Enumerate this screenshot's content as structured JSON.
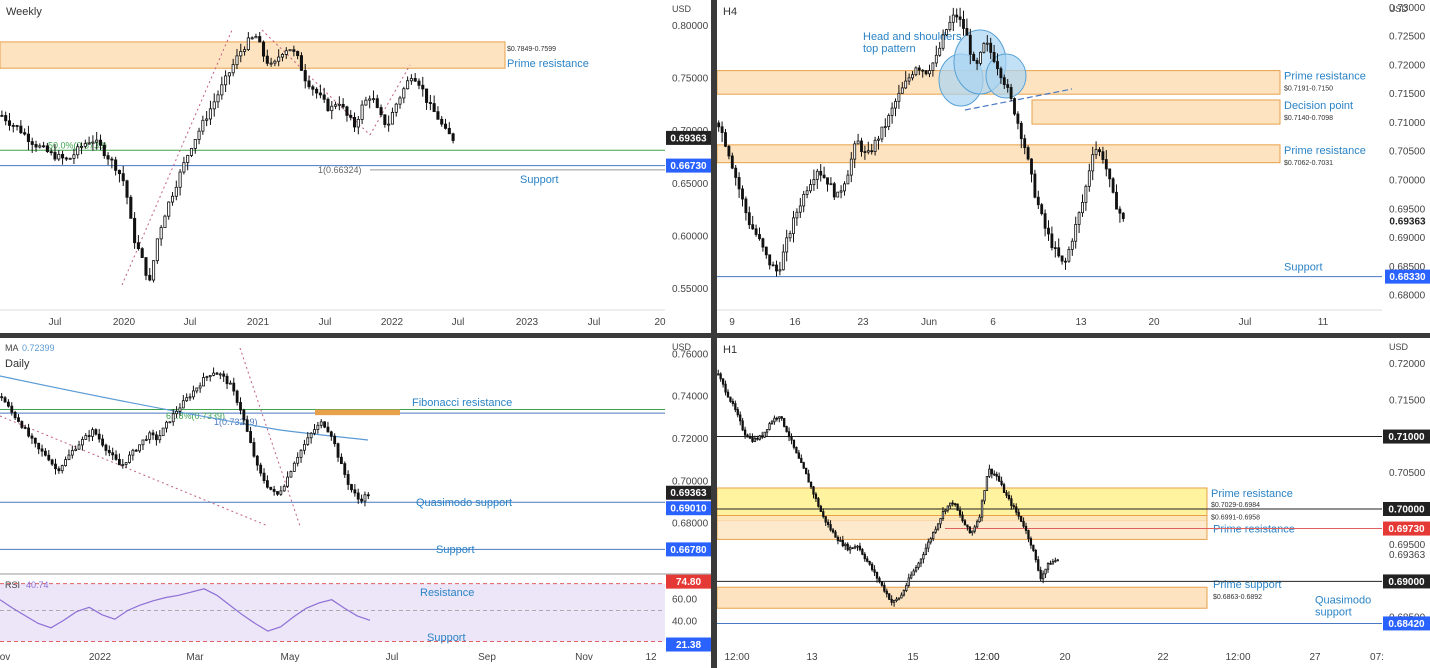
{
  "colors": {
    "bull": "#ffffff",
    "bear": "#111111",
    "zone_fill": "#fde3bf",
    "zone_stroke": "#e8a14a",
    "yellow_fill": "#fff3a0",
    "label_blue": "#2b83c6",
    "ma_line": "#5b9bd5",
    "fib_green": "#3fa34d",
    "rsi_fill": "#ece6f8",
    "rsi_line": "#8e6fd6",
    "tag_dark": "#222222",
    "tag_blue": "#2962ff",
    "tag_red": "#e53935"
  },
  "panels": {
    "weekly": {
      "timeframe": "Weekly",
      "currency": "USD",
      "y_ticks": [
        "0.80000",
        "0.75000",
        "0.70000",
        "0.65000",
        "0.60000",
        "0.55000"
      ],
      "x_ticks": [
        "Jul",
        "2020",
        "Jul",
        "2021",
        "Jul",
        "2022",
        "Jul",
        "2023",
        "Jul",
        "20"
      ],
      "zone_text": "$0.7849-0.7599",
      "zone_label": "Prime resistance",
      "fib_text": "50.0%(0.6733)",
      "ext_text": "1(0.66324)",
      "support_label": "Support",
      "price_tag": "0.69363",
      "support_tag": "0.66730"
    },
    "h4": {
      "timeframe": "H4",
      "currency": "USD",
      "y_ticks": [
        "0.73000",
        "0.72500",
        "0.72000",
        "0.71500",
        "0.71000",
        "0.70500",
        "0.70000",
        "0.69500",
        "0.69000",
        "0.68500",
        "0.68000"
      ],
      "x_ticks": [
        "9",
        "16",
        "23",
        "Jun",
        "6",
        "13",
        "20",
        "Jul",
        "11"
      ],
      "pattern_label": "Head and shoulders\ntop pattern",
      "zones": [
        {
          "label": "Prime resistance",
          "range": "$0.7191-0.7150"
        },
        {
          "label": "Decision point",
          "range": "$0.7140-0.7098"
        },
        {
          "label": "Prime resistance",
          "range": "$0.7062-0.7031"
        }
      ],
      "support_label": "Support",
      "price_tag": "0.69363",
      "support_tag": "0.68330"
    },
    "daily": {
      "ma_label": "MA",
      "ma_value": "0.72399",
      "timeframe": "Daily",
      "currency": "USD",
      "y_ticks": [
        "0.76000",
        "0.74000",
        "0.72000",
        "0.70000",
        "0.68000"
      ],
      "x_ticks": [
        "ov",
        "2022",
        "Mar",
        "May",
        "Jul",
        "Sep",
        "Nov",
        "12"
      ],
      "fib_label": "Fibonacci resistance",
      "fib_text": "61.8%(0.7339)",
      "ext_text": "1(0.73219)",
      "qm_label": "Quasimodo support",
      "support_label": "Support",
      "rsi_label": "RSI",
      "rsi_value": "40.74",
      "rsi_resistance": "Resistance",
      "rsi_support": "Support",
      "rsi_ticks": [
        "60.00",
        "40.00"
      ],
      "price_tag": "0.69363",
      "qm_tag": "0.69010",
      "support_tag": "0.66780",
      "rsi_top_tag": "74.80",
      "rsi_bot_tag": "21.38"
    },
    "h1": {
      "timeframe": "H1",
      "currency": "USD",
      "y_ticks": [
        "0.72000",
        "0.71500",
        "0.70500",
        "0.69500",
        "0.68500"
      ],
      "x_ticks": [
        "12:00",
        "13",
        "12:00",
        "15",
        "12:00",
        "20",
        "22",
        "12:00",
        "27",
        "07:"
      ],
      "zones": [
        {
          "label": "Prime resistance",
          "range": "$0.7029-0.6984"
        },
        {
          "label": "Prime resistance",
          "range": "$0.6991-0.6958"
        },
        {
          "label": "Prime support",
          "range": "$0.6863-0.6892"
        }
      ],
      "qm_label": "Quasimodo\nsupport",
      "tags": {
        "level_710": "0.71000",
        "level_700": "0.70000",
        "red": "0.69730",
        "price": "0.69363",
        "level_690": "0.69000",
        "qm": "0.68420"
      }
    }
  },
  "chart_data": [
    {
      "type": "candlestick",
      "title": "Weekly",
      "ylim": [
        0.53,
        0.82
      ],
      "levels": [
        {
          "name": "Prime resistance",
          "range": [
            0.7599,
            0.7849
          ]
        },
        {
          "name": "Support",
          "value": 0.6673
        }
      ],
      "close_path": [
        0.715,
        0.708,
        0.703,
        0.695,
        0.688,
        0.683,
        0.678,
        0.675,
        0.672,
        0.68,
        0.688,
        0.692,
        0.685,
        0.675,
        0.665,
        0.65,
        0.6,
        0.58,
        0.555,
        0.6,
        0.625,
        0.645,
        0.665,
        0.685,
        0.7,
        0.715,
        0.73,
        0.745,
        0.76,
        0.775,
        0.785,
        0.79,
        0.77,
        0.76,
        0.775,
        0.78,
        0.77,
        0.75,
        0.74,
        0.73,
        0.72,
        0.73,
        0.715,
        0.705,
        0.725,
        0.735,
        0.715,
        0.705,
        0.725,
        0.74,
        0.755,
        0.745,
        0.725,
        0.715,
        0.7,
        0.693
      ]
    },
    {
      "type": "candlestick",
      "title": "H4",
      "ylim": [
        0.6775,
        0.7305
      ],
      "levels": [
        {
          "name": "Prime resistance",
          "range": [
            0.715,
            0.7191
          ]
        },
        {
          "name": "Decision point",
          "range": [
            0.7098,
            0.714
          ]
        },
        {
          "name": "Prime resistance",
          "range": [
            0.7031,
            0.7062
          ]
        },
        {
          "name": "Support",
          "value": 0.6833
        }
      ],
      "close_path": [
        0.71,
        0.705,
        0.699,
        0.693,
        0.69,
        0.686,
        0.684,
        0.69,
        0.695,
        0.699,
        0.702,
        0.7,
        0.697,
        0.701,
        0.707,
        0.704,
        0.707,
        0.71,
        0.714,
        0.717,
        0.72,
        0.719,
        0.721,
        0.726,
        0.729,
        0.726,
        0.719,
        0.724,
        0.721,
        0.717,
        0.712,
        0.706,
        0.698,
        0.692,
        0.688,
        0.685,
        0.691,
        0.697,
        0.706,
        0.704,
        0.697,
        0.693
      ]
    },
    {
      "type": "candlestick",
      "title": "Daily",
      "ylim": [
        0.659,
        0.763
      ],
      "levels": [
        {
          "name": "Fibonacci resistance",
          "range": [
            0.7322,
            0.7339
          ]
        },
        {
          "name": "Quasimodo support",
          "value": 0.6901
        },
        {
          "name": "Support",
          "value": 0.6678
        }
      ],
      "series": [
        {
          "name": "MA",
          "value": 0.72399
        }
      ],
      "close_path": [
        0.74,
        0.733,
        0.728,
        0.721,
        0.715,
        0.712,
        0.705,
        0.71,
        0.716,
        0.72,
        0.724,
        0.718,
        0.712,
        0.707,
        0.712,
        0.717,
        0.722,
        0.72,
        0.727,
        0.733,
        0.738,
        0.743,
        0.748,
        0.752,
        0.75,
        0.745,
        0.735,
        0.72,
        0.705,
        0.698,
        0.693,
        0.7,
        0.71,
        0.717,
        0.724,
        0.728,
        0.722,
        0.708,
        0.697,
        0.691,
        0.694
      ]
    },
    {
      "type": "line",
      "title": "RSI",
      "ylim": [
        20,
        80
      ],
      "values": [
        60,
        52,
        45,
        38,
        34,
        41,
        49,
        53,
        46,
        42,
        50,
        55,
        59,
        62,
        64,
        67,
        70,
        64,
        55,
        46,
        38,
        31,
        35,
        44,
        52,
        57,
        60,
        52,
        45,
        41
      ]
    },
    {
      "type": "candlestick",
      "title": "H1",
      "ylim": [
        0.6815,
        0.7225
      ],
      "levels": [
        {
          "name": "Prime resistance",
          "range": [
            0.6984,
            0.7029
          ]
        },
        {
          "name": "Prime resistance",
          "range": [
            0.6958,
            0.6991
          ]
        },
        {
          "name": "Prime support",
          "range": [
            0.6863,
            0.6892
          ]
        },
        {
          "name": "Quasimodo support",
          "value": 0.6842
        },
        {
          "name": "level",
          "value": 0.71
        },
        {
          "name": "level",
          "value": 0.7
        },
        {
          "name": "level",
          "value": 0.69
        }
      ],
      "close_path": [
        0.7185,
        0.716,
        0.7135,
        0.7105,
        0.7095,
        0.71,
        0.712,
        0.713,
        0.7105,
        0.7075,
        0.705,
        0.702,
        0.699,
        0.697,
        0.6955,
        0.6945,
        0.695,
        0.693,
        0.691,
        0.689,
        0.687,
        0.688,
        0.6905,
        0.6925,
        0.695,
        0.6975,
        0.7,
        0.701,
        0.6985,
        0.6965,
        0.699,
        0.7055,
        0.7045,
        0.702,
        0.7,
        0.698,
        0.695,
        0.6905,
        0.6925,
        0.693
      ]
    }
  ]
}
